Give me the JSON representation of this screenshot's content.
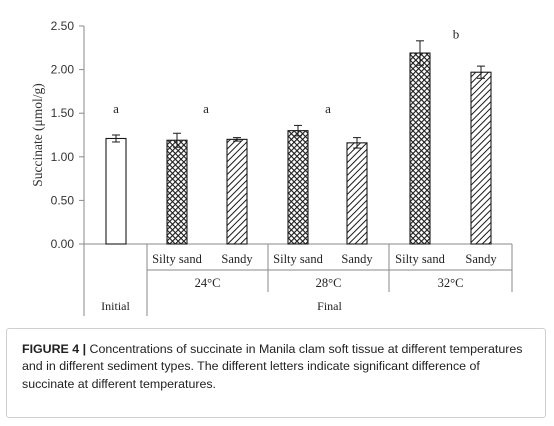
{
  "chart_data": {
    "type": "bar",
    "ylabel": "Succinate (μmol/g)",
    "ylim": [
      0,
      2.5
    ],
    "yticks": [
      "0.00",
      "0.50",
      "1.00",
      "1.50",
      "2.00",
      "2.50"
    ],
    "grid": false,
    "legend": "none",
    "bars": [
      {
        "category": "Initial",
        "value": 1.21,
        "error": 0.04,
        "fill": "white"
      },
      {
        "category": "Silty sand",
        "temperature": "24°C",
        "value": 1.19,
        "error": 0.08,
        "fill": "crosshatch"
      },
      {
        "category": "Sandy",
        "temperature": "24°C",
        "value": 1.2,
        "error": 0.02,
        "fill": "diagonal"
      },
      {
        "category": "Silty sand",
        "temperature": "28°C",
        "value": 1.3,
        "error": 0.06,
        "fill": "crosshatch"
      },
      {
        "category": "Sandy",
        "temperature": "28°C",
        "value": 1.16,
        "error": 0.06,
        "fill": "diagonal"
      },
      {
        "category": "Silty sand",
        "temperature": "32°C",
        "value": 2.19,
        "error": 0.14,
        "fill": "crosshatch"
      },
      {
        "category": "Sandy",
        "temperature": "32°C",
        "value": 1.97,
        "error": 0.07,
        "fill": "diagonal"
      }
    ],
    "temperature_groups": [
      "24°C",
      "28°C",
      "32°C"
    ],
    "group_labels": {
      "initial": "Initial",
      "final": "Final"
    },
    "significance_letters": [
      {
        "letter": "a",
        "group": "Initial",
        "y": 1.55
      },
      {
        "letter": "a",
        "group": "24°C",
        "y": 1.55
      },
      {
        "letter": "a",
        "group": "28°C",
        "y": 1.55
      },
      {
        "letter": "b",
        "group": "32°C",
        "y": 2.4
      }
    ]
  },
  "caption": {
    "label": "FIGURE 4 |",
    "text": " Concentrations of succinate in Manila clam soft tissue at different temperatures and in different sediment types. The different letters indicate significant difference of succinate at different temperatures."
  }
}
